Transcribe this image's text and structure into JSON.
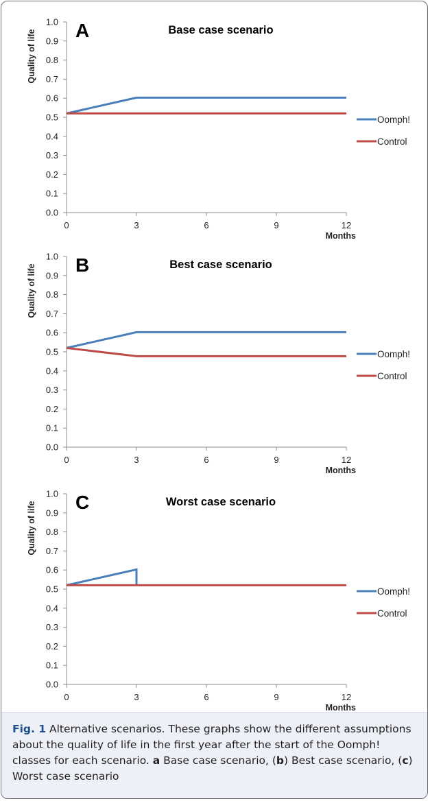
{
  "chart_data": [
    {
      "type": "line",
      "panel_label": "A",
      "title": "Base case scenario",
      "xlabel": "Months",
      "ylabel": "Quality of life",
      "xlim": [
        0,
        12
      ],
      "ylim": [
        0,
        1.0
      ],
      "x_ticks": [
        0,
        3,
        6,
        9,
        12
      ],
      "y_ticks": [
        "0.0",
        "0.1",
        "0.2",
        "0.3",
        "0.4",
        "0.5",
        "0.6",
        "0.7",
        "0.8",
        "0.9",
        "1.0"
      ],
      "legend_position": "right",
      "series": [
        {
          "name": "Oomph!",
          "color": "#4a7ebb",
          "points": [
            [
              0,
              0.52
            ],
            [
              3,
              0.603
            ],
            [
              12,
              0.603
            ]
          ]
        },
        {
          "name": "Control",
          "color": "#be4b48",
          "points": [
            [
              0,
              0.52
            ],
            [
              12,
              0.52
            ]
          ]
        }
      ]
    },
    {
      "type": "line",
      "panel_label": "B",
      "title": "Best case scenario",
      "xlabel": "Months",
      "ylabel": "Quality of life",
      "xlim": [
        0,
        12
      ],
      "ylim": [
        0,
        1.0
      ],
      "x_ticks": [
        0,
        3,
        6,
        9,
        12
      ],
      "y_ticks": [
        "0.0",
        "0.1",
        "0.2",
        "0.3",
        "0.4",
        "0.5",
        "0.6",
        "0.7",
        "0.8",
        "0.9",
        "1.0"
      ],
      "legend_position": "right",
      "series": [
        {
          "name": "Oomph!",
          "color": "#4a7ebb",
          "points": [
            [
              0,
              0.52
            ],
            [
              3,
              0.603
            ],
            [
              12,
              0.603
            ]
          ]
        },
        {
          "name": "Control",
          "color": "#be4b48",
          "points": [
            [
              0,
              0.52
            ],
            [
              3,
              0.477
            ],
            [
              12,
              0.477
            ]
          ]
        }
      ]
    },
    {
      "type": "line",
      "panel_label": "C",
      "title": "Worst case scenario",
      "xlabel": "Months",
      "ylabel": "Quality of life",
      "xlim": [
        0,
        12
      ],
      "ylim": [
        0,
        1.0
      ],
      "x_ticks": [
        0,
        3,
        6,
        9,
        12
      ],
      "y_ticks": [
        "0.0",
        "0.1",
        "0.2",
        "0.3",
        "0.4",
        "0.5",
        "0.6",
        "0.7",
        "0.8",
        "0.9",
        "1.0"
      ],
      "legend_position": "right",
      "series": [
        {
          "name": "Oomph!",
          "color": "#4a7ebb",
          "points": [
            [
              0,
              0.52
            ],
            [
              3,
              0.603
            ],
            [
              3,
              0.52
            ]
          ]
        },
        {
          "name": "Control",
          "color": "#be4b48",
          "points": [
            [
              0,
              0.52
            ],
            [
              12,
              0.52
            ]
          ]
        }
      ]
    }
  ],
  "caption": {
    "fig_label": "Fig. 1",
    "text_1": " Alternative scenarios. These graphs show the different assumptions about the quality of life in the first year after the start of the Oomph! classes for each scenario. ",
    "part_a": "a",
    "text_2": " Base case scenario, (",
    "part_b": "b",
    "text_3": ") Best case scenario, (",
    "part_c": "c",
    "text_4": ") Worst case scenario"
  }
}
